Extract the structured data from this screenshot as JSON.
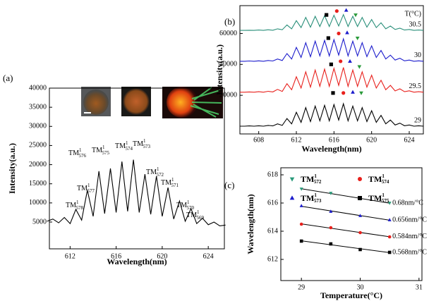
{
  "chart_data": [
    {
      "type": "line",
      "panel_label": "(a)",
      "xlabel": "Wavelength(nm)",
      "ylabel": "Intensity(a.u.)",
      "x": [
        610,
        610.5,
        611,
        611.5,
        612,
        612.5,
        613,
        613.5,
        614,
        614.5,
        615,
        615.5,
        616,
        616.5,
        617,
        617.5,
        618,
        618.5,
        619,
        619.5,
        620,
        620.5,
        621,
        621.5,
        622,
        622.5,
        623,
        623.5,
        624,
        624.5,
        625,
        625.5
      ],
      "series": [
        {
          "color": "#000000",
          "values": [
            5200,
            5800,
            4800,
            6200,
            4600,
            8300,
            5500,
            13300,
            6500,
            18300,
            7200,
            19000,
            7500,
            20800,
            7800,
            21300,
            7500,
            17500,
            7000,
            17000,
            6500,
            14000,
            5800,
            10500,
            5200,
            8500,
            4600,
            6000,
            4300,
            5000,
            4000,
            4200
          ]
        }
      ],
      "xlim": [
        610.2,
        625.4
      ],
      "ylim": [
        -2000,
        40000
      ],
      "xticks": [
        612,
        616,
        620,
        624
      ],
      "yticks": [
        5000,
        10000,
        15000,
        20000,
        25000,
        30000,
        35000,
        40000
      ],
      "annotations": [
        {
          "base": "TM",
          "sup": "1",
          "sub": "578"
        },
        {
          "base": "TM",
          "sup": "1",
          "sub": "577"
        },
        {
          "base": "TM",
          "sup": "1",
          "sub": "576"
        },
        {
          "base": "TM",
          "sup": "1",
          "sub": "575"
        },
        {
          "base": "TM",
          "sup": "1",
          "sub": "574"
        },
        {
          "base": "TM",
          "sup": "1",
          "sub": "573"
        },
        {
          "base": "TM",
          "sup": "1",
          "sub": "572"
        },
        {
          "base": "TM",
          "sup": "1",
          "sub": "571"
        },
        {
          "base": "TM",
          "sup": "1",
          "sub": "570"
        },
        {
          "base": "TM",
          "sup": "1",
          "sub": "569"
        }
      ]
    },
    {
      "type": "line",
      "panel_label": "(b)",
      "xlabel": "Wavelength(nm)",
      "ylabel": "Intensity(a.u.)",
      "legend_title": "T(°C)",
      "x": [
        606,
        606.5,
        607,
        607.5,
        608,
        608.5,
        609,
        609.5,
        610,
        610.5,
        611,
        611.5,
        612,
        612.5,
        613,
        613.5,
        614,
        614.5,
        615,
        615.5,
        616,
        616.5,
        617,
        617.5,
        618,
        618.5,
        619,
        619.5,
        620,
        620.5,
        621,
        621.5,
        622,
        622.5,
        623,
        623.5,
        624,
        624.5,
        625,
        625.5
      ],
      "series": [
        {
          "name": "29",
          "color": "#000000",
          "values": [
            0,
            0,
            200,
            0,
            300,
            0,
            500,
            200,
            1500,
            500,
            5000,
            1500,
            9000,
            2500,
            12000,
            3000,
            13000,
            3500,
            13500,
            3500,
            14000,
            4000,
            14500,
            3500,
            13000,
            3500,
            12000,
            3000,
            10000,
            2500,
            7000,
            1500,
            4000,
            800,
            2000,
            300,
            800,
            0,
            300,
            0
          ]
        },
        {
          "name": "29.5",
          "color": "#e8201c",
          "values": [
            22000,
            22000,
            22200,
            22000,
            22300,
            22000,
            22600,
            22200,
            23800,
            22500,
            27500,
            23600,
            32000,
            24700,
            35200,
            25300,
            36300,
            25800,
            36900,
            25800,
            37400,
            26400,
            38000,
            25800,
            36300,
            25800,
            35200,
            25300,
            33000,
            24700,
            29700,
            23600,
            26400,
            22800,
            24200,
            22300,
            22900,
            22000,
            22300,
            22000
          ]
        },
        {
          "name": "30",
          "color": "#1c1ccc",
          "values": [
            42000,
            42000,
            42200,
            42000,
            42300,
            42000,
            42500,
            42200,
            43500,
            42500,
            47000,
            43500,
            51000,
            44500,
            54000,
            45000,
            55000,
            45500,
            55500,
            45500,
            56000,
            46000,
            56500,
            45500,
            55000,
            45500,
            54000,
            45000,
            52000,
            44500,
            49000,
            43500,
            46000,
            42800,
            44000,
            42300,
            42800,
            42000,
            42300,
            42000
          ]
        },
        {
          "name": "30.5",
          "color": "#2a8f7a",
          "values": [
            62000,
            62000,
            62100,
            62000,
            62200,
            62000,
            62400,
            62100,
            63000,
            62400,
            65500,
            63000,
            68300,
            63800,
            70400,
            64100,
            71100,
            64500,
            71500,
            64500,
            71800,
            64800,
            72200,
            64500,
            71100,
            64500,
            70400,
            64100,
            69000,
            63800,
            66900,
            63000,
            64800,
            62600,
            63400,
            62200,
            62600,
            62000,
            62200,
            62000
          ]
        }
      ],
      "markers": [
        {
          "shape": "square",
          "color": "#000000",
          "x": [
            615.9,
            615.7,
            615.4,
            615.2
          ],
          "y": [
            21500,
            40000,
            57000,
            72000
          ]
        },
        {
          "shape": "circle",
          "color": "#e8201c",
          "x": [
            617.0,
            616.7,
            616.5,
            616.3
          ],
          "y": [
            21500,
            42000,
            60000,
            74500
          ]
        },
        {
          "shape": "triangle-up",
          "color": "#1c1ccc",
          "x": [
            618.0,
            617.7,
            617.4,
            617.3
          ],
          "y": [
            22000,
            42000,
            60500,
            75000
          ]
        },
        {
          "shape": "triangle-down",
          "color": "#2a9a3a",
          "x": [
            618.9,
            618.7,
            618.5,
            618.3
          ],
          "y": [
            21500,
            38500,
            57000,
            72000
          ]
        }
      ],
      "xlim": [
        606,
        625.5
      ],
      "ylim": [
        -5000,
        78000
      ],
      "xticks": [
        608,
        612,
        616,
        620,
        624
      ],
      "yticks": [
        20000,
        40000,
        60000
      ]
    },
    {
      "type": "scatter",
      "panel_label": "(c)",
      "xlabel": "Temperature(°C)",
      "ylabel": "Wavelength(nm)",
      "x": [
        29,
        29.5,
        30,
        30.5
      ],
      "series": [
        {
          "label": {
            "base": "TM",
            "sup": "1",
            "sub": "572"
          },
          "marker": "triangle-down",
          "color": "#2a9a7a",
          "values": [
            617.0,
            616.7,
            616.3,
            616.0
          ],
          "slope_label": "0.68nm/°C"
        },
        {
          "label": {
            "base": "TM",
            "sup": "1",
            "sub": "573"
          },
          "marker": "triangle-up",
          "color": "#1c1ccc",
          "values": [
            615.8,
            615.4,
            615.1,
            614.8
          ],
          "slope_label": "0.656nm/°C"
        },
        {
          "label": {
            "base": "TM",
            "sup": "1",
            "sub": "574"
          },
          "marker": "circle",
          "color": "#e8201c",
          "values": [
            614.5,
            614.25,
            613.9,
            613.6
          ],
          "slope_label": "0.584nm/°C"
        },
        {
          "label": {
            "base": "TM",
            "sup": "1",
            "sub": "575"
          },
          "marker": "square",
          "color": "#000000",
          "values": [
            613.3,
            613.1,
            612.7,
            612.5
          ],
          "slope_label": "0.568nm/°C"
        }
      ],
      "xlim": [
        28.65,
        31.05
      ],
      "ylim": [
        610.5,
        618.5
      ],
      "xticks": [
        29,
        30,
        31
      ],
      "yticks": [
        612,
        614,
        616,
        618
      ]
    }
  ]
}
